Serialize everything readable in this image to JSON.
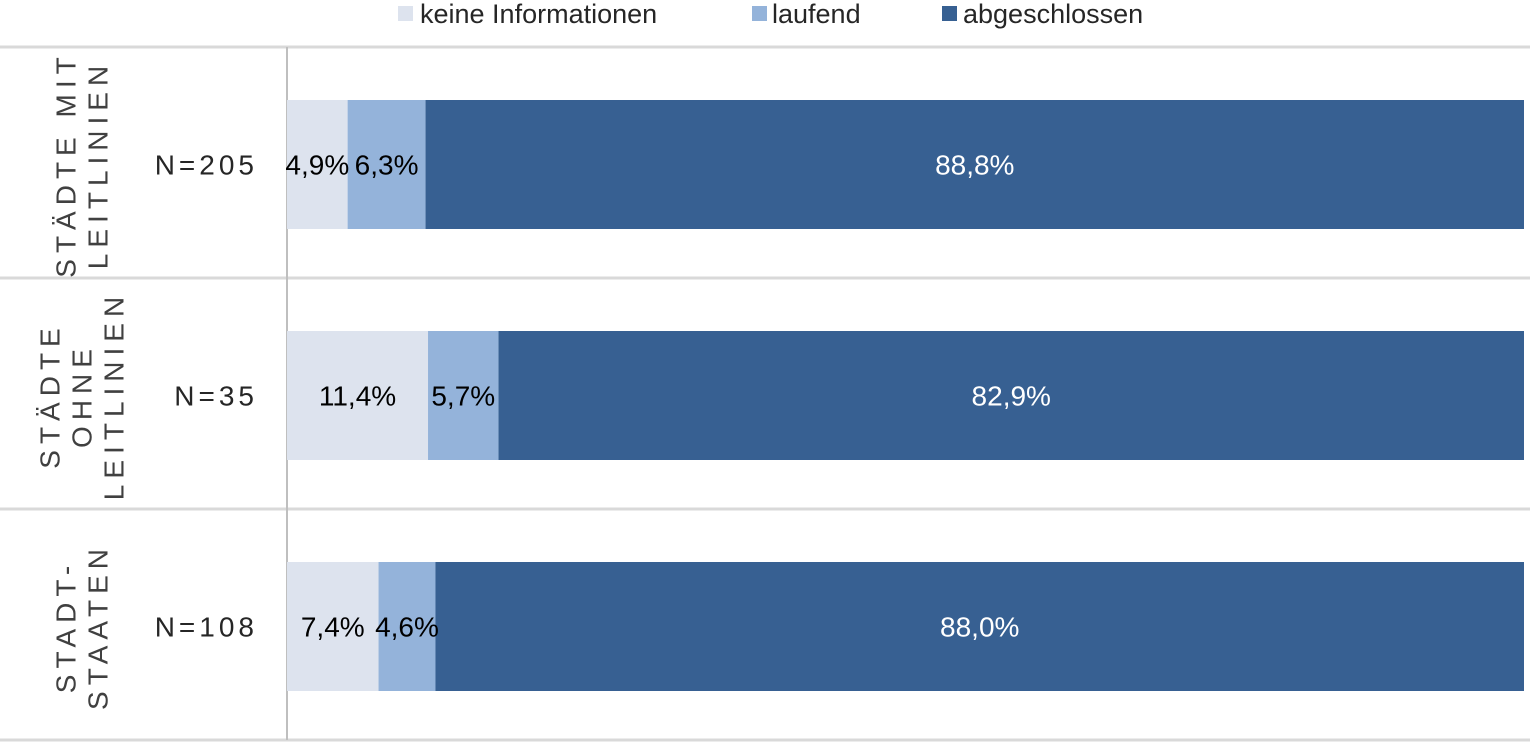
{
  "chart_data": {
    "type": "bar",
    "orientation": "horizontal",
    "stacked": true,
    "percent_stacked": true,
    "legend_position": "top",
    "grid": false,
    "series": [
      {
        "name": "keine Informationen",
        "color": "#dde3ee",
        "label_color": "#000000",
        "values": [
          4.9,
          11.4,
          7.4
        ],
        "labels": [
          "4,9%",
          "11,4%",
          "7,4%"
        ]
      },
      {
        "name": "laufend",
        "color": "#94b3da",
        "label_color": "#000000",
        "values": [
          6.3,
          5.7,
          4.6
        ],
        "labels": [
          "6,3%",
          "5,7%",
          "4,6%"
        ]
      },
      {
        "name": "abgeschlossen",
        "color": "#376092",
        "label_color": "#ffffff",
        "values": [
          88.8,
          82.9,
          88.0
        ],
        "labels": [
          "88,8%",
          "82,9%",
          "88,0%"
        ]
      }
    ],
    "groups": [
      {
        "lines": [
          "STÄDTE MIT",
          "LEITLINIEN"
        ],
        "n": "N=205"
      },
      {
        "lines": [
          "STÄDTE",
          "OHNE",
          "LEITLINIEN"
        ],
        "n": "N=35"
      },
      {
        "lines": [
          "STADT-",
          "STAATEN"
        ],
        "n": "N=108"
      }
    ],
    "xlim": [
      0,
      100
    ]
  },
  "colors": {
    "grid_line": "#d9d9d9",
    "axis_line": "#bfbfbf"
  }
}
